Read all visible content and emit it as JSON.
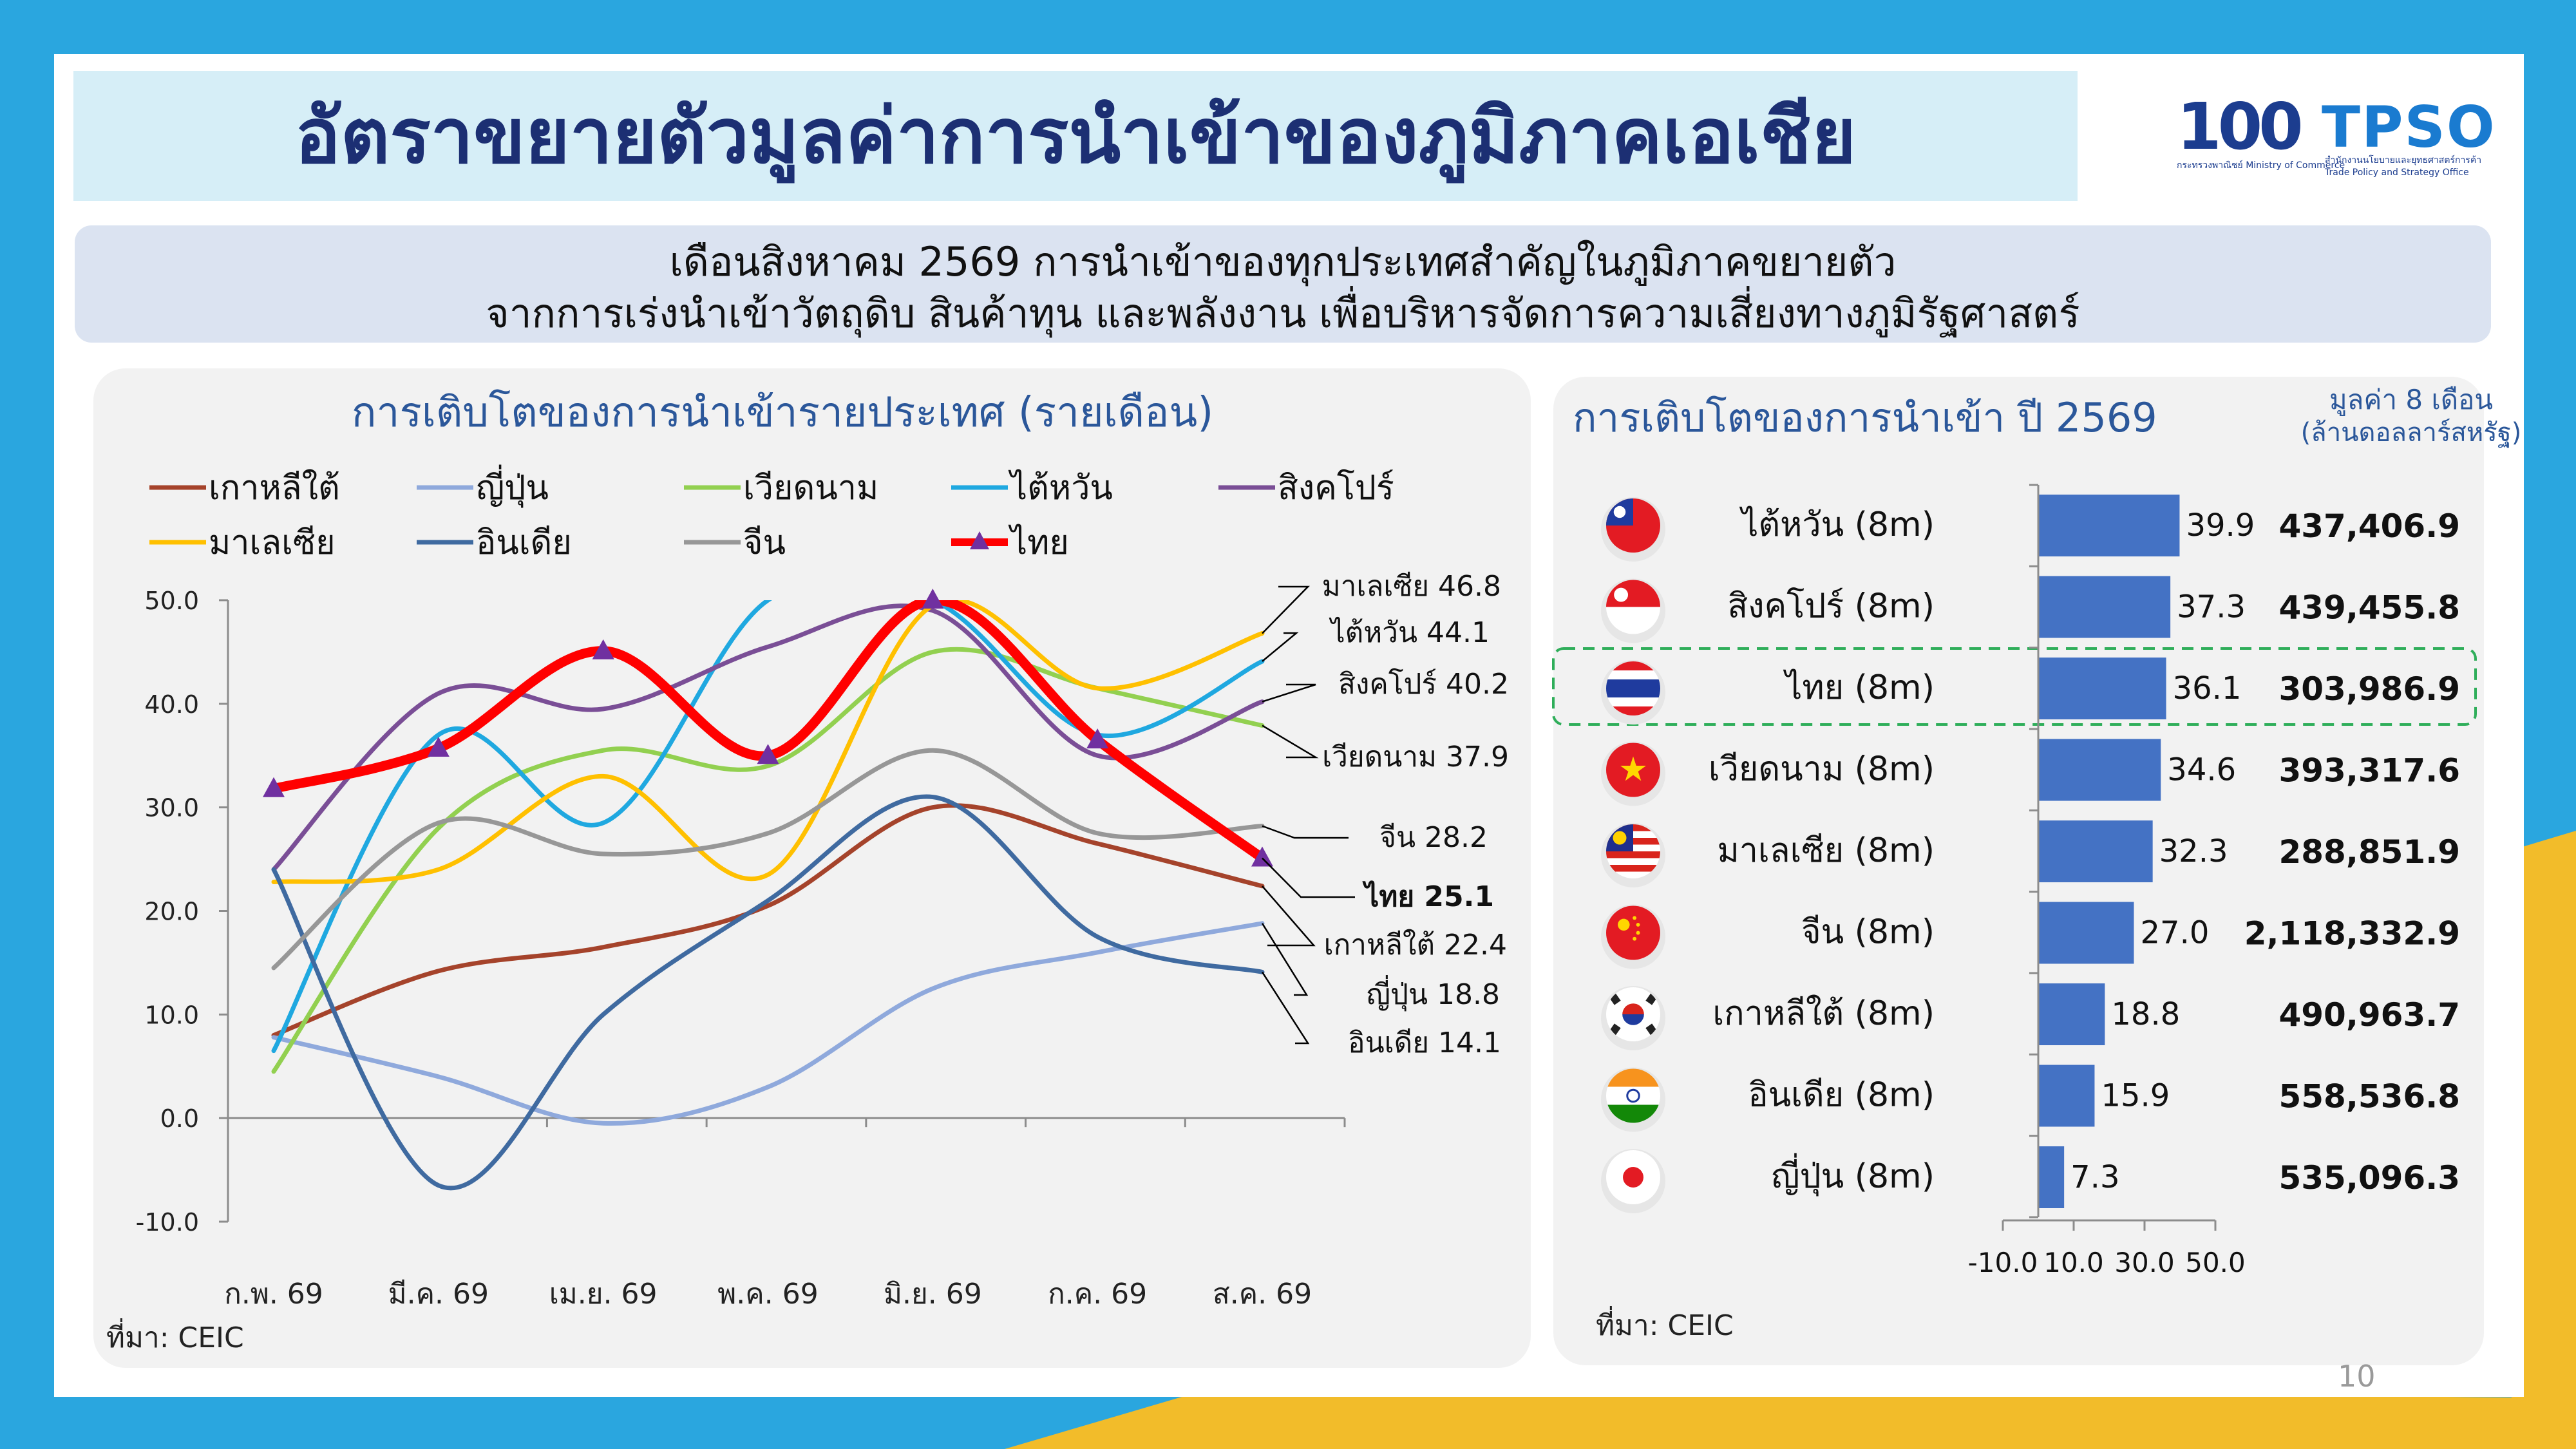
{
  "title": "อัตราขยายตัวมูลค่าการนำเข้าของภูมิภาคเอเชีย",
  "logo": {
    "ministry_mark": "100",
    "ministry_sub": "กระทรวงพาณิชย์ Ministry of Commerce",
    "tpso_mark": "TPSO",
    "tpso_sub": "สำนักงานนโยบายและยุทธศาสตร์การค้า Trade Policy and Strategy Office"
  },
  "summary": {
    "line1": "เดือนสิงหาคม 2569 การนำเข้าของทุกประเทศสำคัญในภูมิภาคขยายตัว",
    "line2": "จากการเร่งนำเข้าวัตถุดิบ สินค้าทุน และพลังงาน เพื่อบริหารจัดการความเสี่ยงทางภูมิรัฐศาสตร์"
  },
  "colors": {
    "title_text": "#1c2f73",
    "title_bg": "#d6eef7",
    "summary_bg": "#dbe3f1",
    "bar": "#4472c4",
    "thai_highlight": "#2fae5a",
    "background_blue": "#2aa6df",
    "background_yellow": "#f2bc2a"
  },
  "left_panel": {
    "source": "ที่มา: CEIC"
  },
  "right_panel": {
    "value_header_line1": "มูลค่า 8 เดือน",
    "value_header_line2": "(ล้านดอลลาร์สหรัฐ)",
    "source": "ที่มา: CEIC"
  },
  "page_number": "10",
  "chart_data": [
    {
      "type": "line",
      "title": "การเติบโตของการนำเข้ารายประเทศ (รายเดือน)",
      "categories": [
        "ก.พ. 69",
        "มี.ค. 69",
        "เม.ย. 69",
        "พ.ค. 69",
        "มิ.ย. 69",
        "ก.ค. 69",
        "ส.ค. 69"
      ],
      "ylim": [
        -10,
        50
      ],
      "yticks": [
        "50.0",
        "40.0",
        "30.0",
        "20.0",
        "10.0",
        "0.0",
        "-10.0"
      ],
      "ytick_values": [
        50,
        40,
        30,
        20,
        10,
        0,
        -10
      ],
      "legend_position": "top",
      "series": [
        {
          "name": "เกาหลีใต้",
          "color": "#a5432b",
          "values": [
            8.0,
            14.2,
            16.5,
            20.5,
            30.0,
            26.5,
            22.4
          ],
          "end_label": "เกาหลีใต้ 22.4"
        },
        {
          "name": "ญี่ปุ่น",
          "color": "#8fa9dc",
          "values": [
            7.8,
            4.0,
            -0.5,
            3.0,
            12.5,
            16.0,
            18.8
          ],
          "end_label": "ญี่ปุ่น 18.8"
        },
        {
          "name": "เวียดนาม",
          "color": "#92d050",
          "values": [
            4.5,
            28.0,
            35.5,
            34.0,
            45.0,
            41.5,
            37.9
          ],
          "end_label": "เวียดนาม 37.9"
        },
        {
          "name": "ไต้หวัน",
          "color": "#1fa8e0",
          "values": [
            6.5,
            37.0,
            28.5,
            50.0,
            50.0,
            37.0,
            44.1
          ],
          "end_label": "ไต้หวัน 44.1"
        },
        {
          "name": "สิงคโปร์",
          "color": "#7a4e96",
          "values": [
            24.0,
            41.0,
            39.5,
            45.5,
            49.0,
            35.0,
            40.2
          ],
          "end_label": "สิงคโปร์ 40.2"
        },
        {
          "name": "มาเลเซีย",
          "color": "#ffc000",
          "values": [
            22.8,
            24.0,
            33.0,
            23.5,
            49.5,
            41.5,
            46.8
          ],
          "end_label": "มาเลเซีย 46.8"
        },
        {
          "name": "อินเดีย",
          "color": "#3f6aa0",
          "values": [
            24.0,
            -6.5,
            10.0,
            21.0,
            31.0,
            17.5,
            14.1
          ],
          "end_label": "อินเดีย 14.1"
        },
        {
          "name": "จีน",
          "color": "#979797",
          "values": [
            14.5,
            28.5,
            25.5,
            27.5,
            35.5,
            27.5,
            28.2
          ],
          "end_label": "จีน 28.2"
        },
        {
          "name": "ไทย",
          "color": "#ff0000",
          "marker_color": "#7030a0",
          "values": [
            31.8,
            35.7,
            45.1,
            35.0,
            50.0,
            36.5,
            25.1
          ],
          "end_label": "ไทย 25.1"
        }
      ]
    },
    {
      "type": "bar",
      "orientation": "horizontal",
      "title": "การเติบโตของการนำเข้า ปี 2569",
      "xlim": [
        -10,
        50
      ],
      "xticks": [
        "-10.0",
        "10.0",
        "30.0",
        "50.0"
      ],
      "xtick_values": [
        -10,
        10,
        30,
        50
      ],
      "categories": [
        "ไต้หวัน (8m)",
        "สิงคโปร์ (8m)",
        "ไทย (8m)",
        "เวียดนาม (8m)",
        "มาเลเซีย (8m)",
        "จีน (8m)",
        "เกาหลีใต้ (8m)",
        "อินเดีย (8m)",
        "ญี่ปุ่น (8m)"
      ],
      "values": [
        39.9,
        37.3,
        36.1,
        34.6,
        32.3,
        27.0,
        18.8,
        15.9,
        7.3
      ],
      "value_labels": [
        "39.9",
        "37.3",
        "36.1",
        "34.6",
        "32.3",
        "27.0",
        "18.8",
        "15.9",
        "7.3"
      ],
      "import_values": [
        "437,406.9",
        "439,455.8",
        "303,986.9",
        "393,317.6",
        "288,851.9",
        "2,118,332.9",
        "490,963.7",
        "558,536.8",
        "535,096.3"
      ],
      "flags": [
        "taiwan-flag-icon",
        "singapore-flag-icon",
        "thailand-flag-icon",
        "vietnam-flag-icon",
        "malaysia-flag-icon",
        "china-flag-icon",
        "south-korea-flag-icon",
        "india-flag-icon",
        "japan-flag-icon"
      ],
      "highlight": "ไทย (8m)"
    }
  ]
}
